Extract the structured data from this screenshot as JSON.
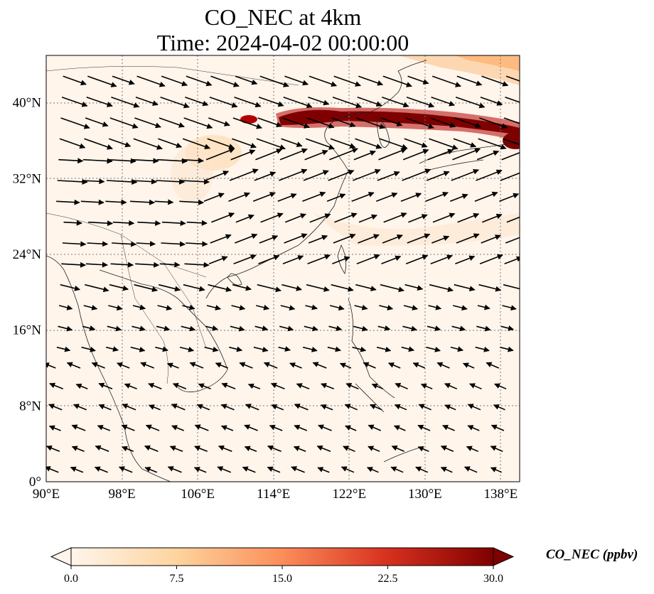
{
  "title": "CO_NEC at 4km",
  "subtitle": "Time: 2024-04-02 00:00:00",
  "map": {
    "lon_range": [
      90,
      140
    ],
    "lat_range": [
      0,
      45
    ],
    "lon_ticks": [
      "90°E",
      "98°E",
      "106°E",
      "114°E",
      "122°E",
      "130°E",
      "138°E"
    ],
    "lon_tick_values": [
      90,
      98,
      106,
      114,
      122,
      130,
      138
    ],
    "lat_ticks": [
      "0°",
      "8°N",
      "16°N",
      "24°N",
      "32°N",
      "40°N"
    ],
    "lat_tick_values": [
      0,
      8,
      16,
      24,
      32,
      40
    ],
    "gridlines": true,
    "field": "CO_NEC",
    "background_color": "#fff5eb",
    "plume_color": "#8b0000",
    "vector_field": "wind"
  },
  "colorbar": {
    "label": "CO_NEC (ppbv)",
    "min": 0.0,
    "max": 30.0,
    "ticks": [
      "0.0",
      "7.5",
      "15.0",
      "22.5",
      "30.0"
    ],
    "tick_values": [
      0.0,
      7.5,
      15.0,
      22.5,
      30.0
    ],
    "extend": "both",
    "colormap": "OrRd",
    "colors": [
      "#fff5eb",
      "#fdd49e",
      "#fc8d59",
      "#d7301f",
      "#7f0000"
    ]
  }
}
